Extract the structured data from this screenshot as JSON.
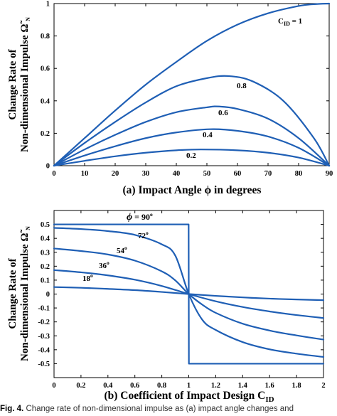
{
  "caption": {
    "label": "Fig. 4.",
    "text": "Change rate of non-dimensional impulse as (a) impact angle changes and"
  },
  "chart_data": [
    {
      "type": "line",
      "panel": "a",
      "xlabel": "(a) Impact Angle ϕ in degrees",
      "ylabel_line1": "Change Rate of",
      "ylabel_line2": "Non-dimensional Impulse",
      "ylabel_symbol": "Ω̃",
      "ylabel_symbol_sub": "N",
      "xlim": [
        0,
        90
      ],
      "ylim": [
        0,
        1
      ],
      "xticks": [
        "0",
        "10",
        "20",
        "30",
        "40",
        "50",
        "60",
        "70",
        "80",
        "90"
      ],
      "yticks": [
        "0",
        "0.2",
        "0.4",
        "0.6",
        "0.8",
        "1"
      ],
      "series": [
        {
          "name": "C_ID = 1",
          "label_text": "1",
          "x": [
            0,
            10,
            20,
            30,
            40,
            50,
            60,
            70,
            80,
            85,
            90
          ],
          "y": [
            0,
            0.17,
            0.34,
            0.5,
            0.64,
            0.77,
            0.87,
            0.94,
            0.985,
            0.996,
            1.0
          ]
        },
        {
          "name": "0.8",
          "label_text": "0.8",
          "x": [
            0,
            10,
            20,
            30,
            40,
            50,
            57,
            65,
            75,
            85,
            90
          ],
          "y": [
            0,
            0.14,
            0.27,
            0.39,
            0.49,
            0.54,
            0.553,
            0.52,
            0.4,
            0.17,
            0.0
          ]
        },
        {
          "name": "0.6",
          "label_text": "0.6",
          "x": [
            0,
            10,
            20,
            30,
            40,
            50,
            54,
            60,
            70,
            80,
            90
          ],
          "y": [
            0,
            0.1,
            0.19,
            0.27,
            0.33,
            0.36,
            0.365,
            0.35,
            0.29,
            0.17,
            0.0
          ]
        },
        {
          "name": "0.4",
          "label_text": "0.4",
          "x": [
            0,
            10,
            20,
            30,
            40,
            51,
            60,
            70,
            80,
            90
          ],
          "y": [
            0,
            0.063,
            0.12,
            0.17,
            0.205,
            0.225,
            0.215,
            0.18,
            0.11,
            0.0
          ]
        },
        {
          "name": "0.2",
          "label_text": "0.2",
          "x": [
            0,
            10,
            20,
            30,
            40,
            48,
            60,
            70,
            80,
            90
          ],
          "y": [
            0,
            0.03,
            0.058,
            0.08,
            0.095,
            0.1,
            0.095,
            0.08,
            0.05,
            0.0
          ]
        }
      ]
    },
    {
      "type": "line",
      "panel": "b",
      "xlabel": "(b) Coefficient of Impact Design C",
      "xlabel_sub": "ID",
      "ylabel_line1": "Change Rate of",
      "ylabel_line2": "Non-dimensional Impulse",
      "ylabel_symbol": "Ω̃",
      "ylabel_symbol_sub": "N",
      "xlim": [
        0,
        2
      ],
      "ylim": [
        -0.6,
        0.6
      ],
      "xticks": [
        "0",
        "0.2",
        "0.4",
        "0.6",
        "0.8",
        "1",
        "1.2",
        "1.4",
        "1.6",
        "1.8",
        "2"
      ],
      "yticks": [
        "0.5",
        "0.4",
        "0.3",
        "0.2",
        "0.1",
        "0",
        "-0.1",
        "-0.2",
        "-0.3",
        "-0.4",
        "-0.5"
      ],
      "series": [
        {
          "name": "ϕ = 90°",
          "label_text": "= 90",
          "label_sup": "o",
          "x": [
            0,
            0.999,
            1.0,
            1.001,
            2.0
          ],
          "y": [
            0.5,
            0.5,
            0.0,
            -0.5,
            -0.5
          ]
        },
        {
          "name": "72°",
          "label_text": "72",
          "label_sup": "o",
          "x": [
            0,
            0.2,
            0.4,
            0.6,
            0.8,
            0.9,
            1.0,
            1.1,
            1.2,
            1.4,
            1.6,
            1.8,
            2.0
          ],
          "y": [
            0.475,
            0.467,
            0.452,
            0.425,
            0.357,
            0.276,
            0.0,
            -0.184,
            -0.258,
            -0.345,
            -0.397,
            -0.428,
            -0.452
          ]
        },
        {
          "name": "54°",
          "label_text": "54",
          "label_sup": "o",
          "x": [
            0,
            0.2,
            0.4,
            0.6,
            0.8,
            0.9,
            1.0,
            1.1,
            1.2,
            1.4,
            1.6,
            1.8,
            2.0
          ],
          "y": [
            0.327,
            0.309,
            0.284,
            0.24,
            0.163,
            0.098,
            0.0,
            -0.076,
            -0.135,
            -0.213,
            -0.262,
            -0.297,
            -0.327
          ]
        },
        {
          "name": "36°",
          "label_text": "36",
          "label_sup": "o",
          "x": [
            0,
            0.2,
            0.4,
            0.6,
            0.8,
            1.0,
            1.2,
            1.4,
            1.6,
            1.8,
            2.0
          ],
          "y": [
            0.172,
            0.156,
            0.134,
            0.103,
            0.058,
            0.0,
            -0.052,
            -0.093,
            -0.125,
            -0.151,
            -0.172
          ]
        },
        {
          "name": "18°",
          "label_text": "18",
          "label_sup": "o",
          "x": [
            0,
            0.2,
            0.4,
            0.6,
            0.8,
            1.0,
            1.2,
            1.4,
            1.6,
            1.8,
            2.0
          ],
          "y": [
            0.05,
            0.045,
            0.037,
            0.028,
            0.015,
            0.0,
            -0.013,
            -0.024,
            -0.033,
            -0.039,
            -0.044
          ]
        }
      ]
    }
  ]
}
